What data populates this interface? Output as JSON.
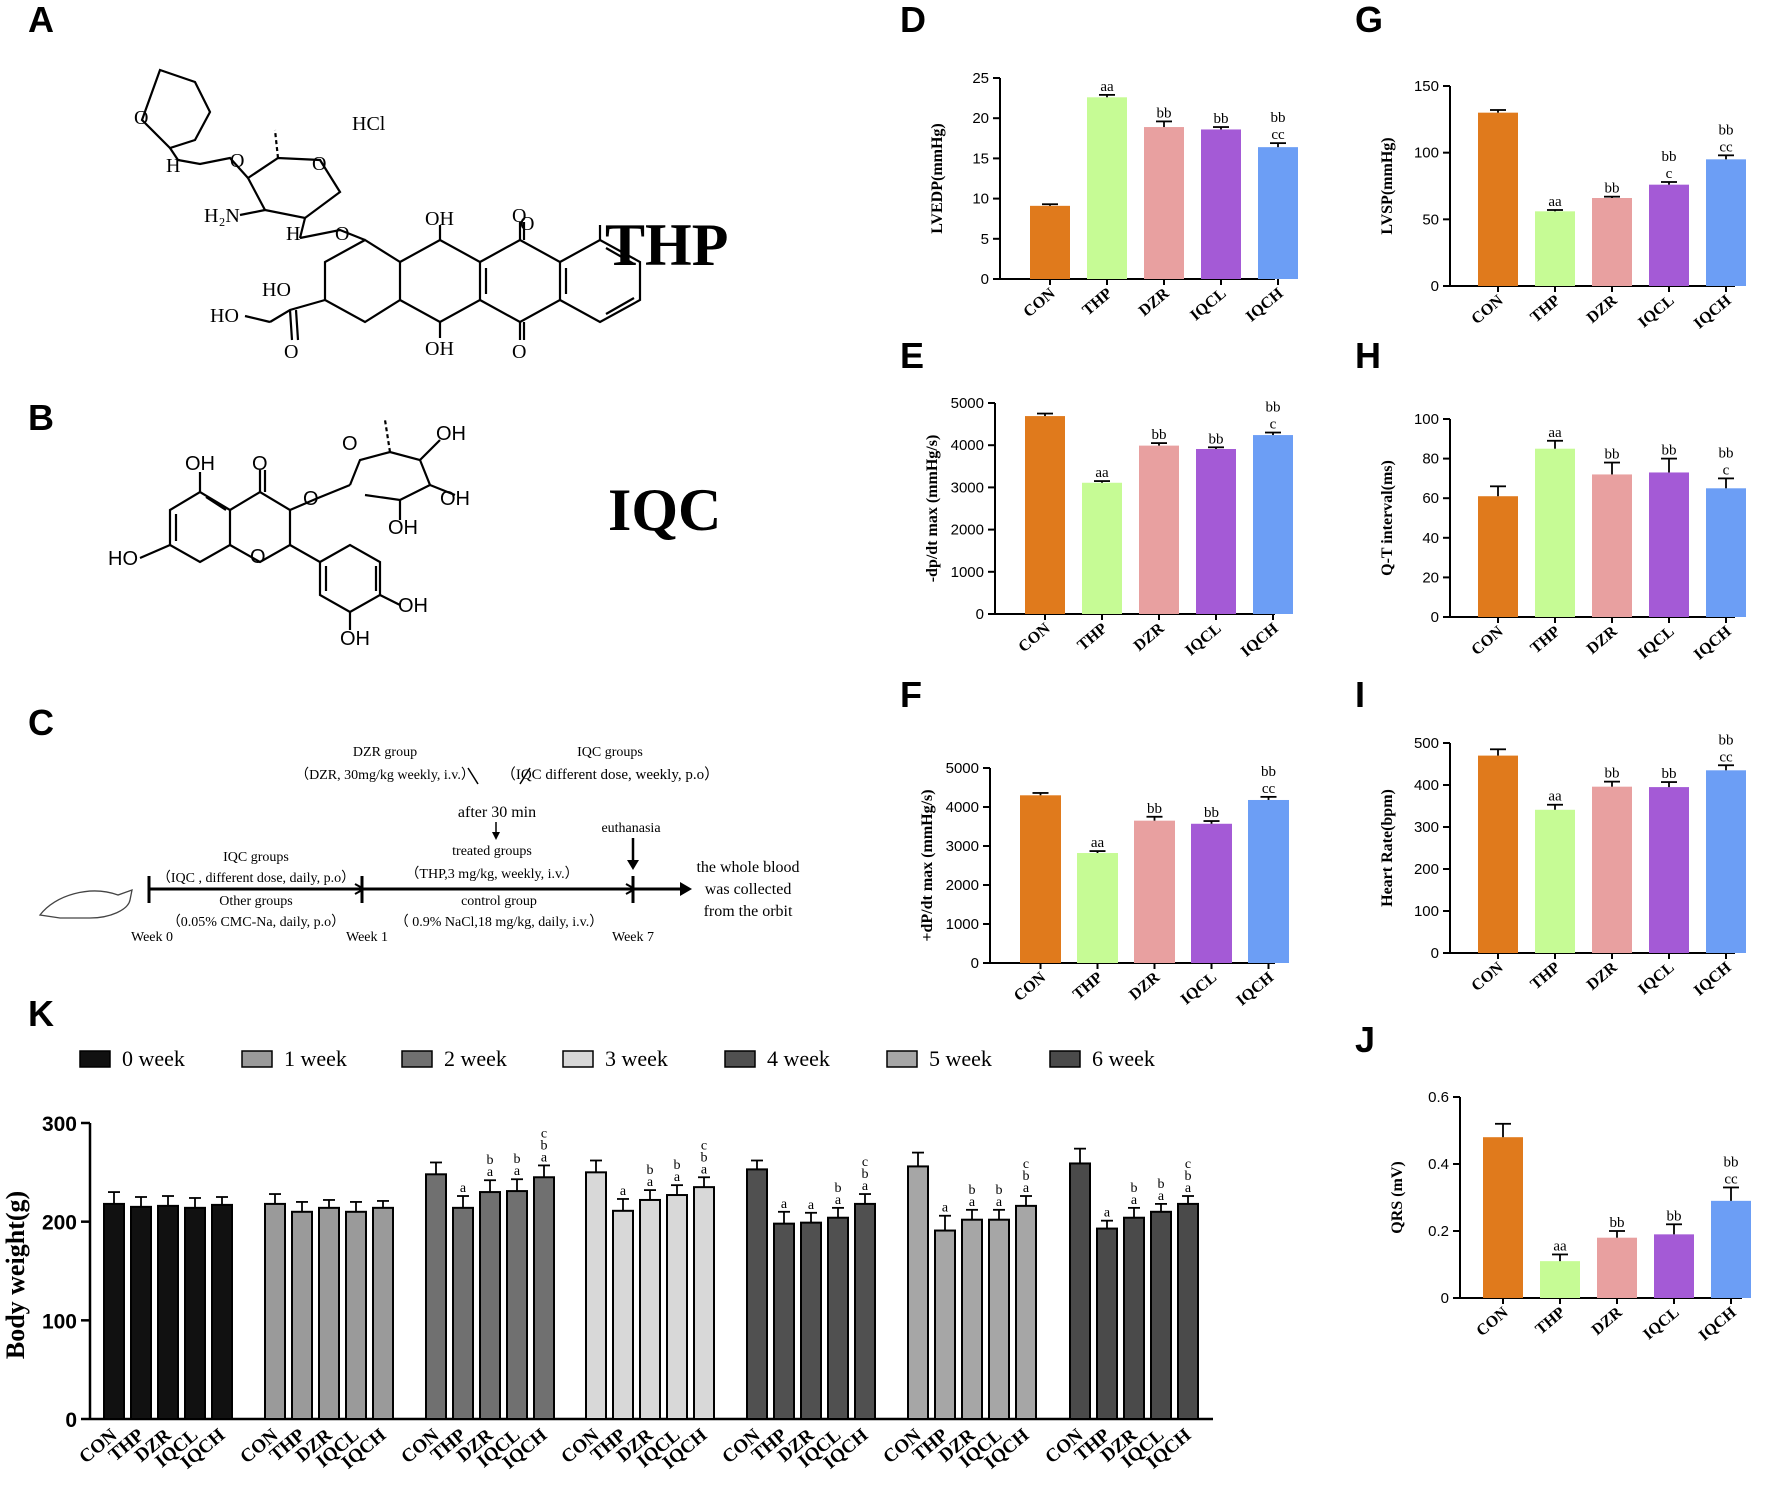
{
  "panel_letters": {
    "A": "A",
    "B": "B",
    "C": "C",
    "D": "D",
    "E": "E",
    "F": "F",
    "G": "G",
    "H": "H",
    "I": "I",
    "J": "J",
    "K": "K"
  },
  "compounds": {
    "thp": {
      "name": "THP",
      "salt": "HCl",
      "atoms": [
        "O",
        "H",
        "O",
        "O",
        "H₂N",
        "H",
        "O",
        "OH",
        "O",
        "O",
        "HO",
        "HO",
        "O",
        "OH",
        "O"
      ]
    },
    "iqc": {
      "name": "IQC",
      "atoms": [
        "OH",
        "O",
        "O",
        "O",
        "OH",
        "OH",
        "HO",
        "O",
        "OH",
        "OH",
        "OH"
      ]
    }
  },
  "scheme": {
    "dzr_title": "DZR group",
    "dzr_detail": "（DZR, 30mg/kg weekly, i.v.）",
    "iqc_title2": "IQC groups",
    "iqc_detail2": "（IQC different dose, weekly, p.o）",
    "after": "after 30 min",
    "treated_title": "treated groups",
    "treated_detail": "（THP,3 mg/kg, weekly, i.v.）",
    "euthanasia": "euthanasia",
    "iqc_title1": "IQC groups",
    "iqc_detail1": "（IQC , different dose, daily, p.o）",
    "other_title": "Other groups",
    "other_detail": "（0.05% CMC-Na, daily, p.o）",
    "control_title": "control group",
    "control_detail": "（ 0.9% NaCl,18 mg/kg, daily, i.v.）",
    "outcome": [
      "the whole blood",
      "was collected",
      "from the orbit"
    ],
    "week0": "Week 0",
    "week1": "Week 1",
    "week7": "Week 7"
  },
  "chart_data": [
    {
      "id": "D",
      "type": "bar",
      "categories": [
        "CON",
        "THP",
        "DZR",
        "IQCL",
        "IQCH"
      ],
      "values": [
        9.1,
        22.6,
        18.9,
        18.6,
        16.4
      ],
      "errors": [
        0.2,
        0.3,
        0.7,
        0.3,
        0.5
      ],
      "annotations": [
        "",
        "aa",
        "bb",
        "bb",
        "bb\ncc"
      ],
      "ylabel": "LVEDP(mmHg)",
      "ylim": [
        0,
        25
      ],
      "yticks": [
        0,
        5,
        10,
        15,
        20,
        25
      ]
    },
    {
      "id": "E",
      "type": "bar",
      "categories": [
        "CON",
        "THP",
        "DZR",
        "IQCL",
        "IQCH"
      ],
      "values": [
        4690,
        3110,
        3990,
        3910,
        4240
      ],
      "errors": [
        60,
        40,
        60,
        40,
        60
      ],
      "annotations": [
        "",
        "aa",
        "bb",
        "bb",
        "bb\nc"
      ],
      "ylabel": "-dp/dt max (mmHg/s)",
      "ylim": [
        0,
        5000
      ],
      "yticks": [
        0,
        1000,
        2000,
        3000,
        4000,
        5000
      ]
    },
    {
      "id": "F",
      "type": "bar",
      "categories": [
        "CON",
        "THP",
        "DZR",
        "IQCL",
        "IQCH"
      ],
      "values": [
        4300,
        2820,
        3650,
        3570,
        4180
      ],
      "errors": [
        60,
        50,
        100,
        70,
        80
      ],
      "annotations": [
        "",
        "aa",
        "bb",
        "bb",
        "bb\ncc"
      ],
      "ylabel": "+dP/dt max (mmHg/s)",
      "ylim": [
        0,
        5000
      ],
      "yticks": [
        0,
        1000,
        2000,
        3000,
        4000,
        5000
      ]
    },
    {
      "id": "G",
      "type": "bar",
      "categories": [
        "CON",
        "THP",
        "DZR",
        "IQCL",
        "IQCH"
      ],
      "values": [
        130,
        56,
        66,
        76,
        95
      ],
      "errors": [
        2,
        1,
        1,
        2,
        3
      ],
      "annotations": [
        "",
        "aa",
        "bb",
        "bb\nc",
        "bb\ncc"
      ],
      "ylabel": "LVSP(mmHg)",
      "ylim": [
        0,
        150
      ],
      "yticks": [
        0,
        50,
        100,
        150
      ]
    },
    {
      "id": "H",
      "type": "bar",
      "categories": [
        "CON",
        "THP",
        "DZR",
        "IQCL",
        "IQCH"
      ],
      "values": [
        61,
        85,
        72,
        73,
        65
      ],
      "errors": [
        5,
        4,
        6,
        7,
        5
      ],
      "annotations": [
        "",
        "aa",
        "bb",
        "bb",
        "bb\nc"
      ],
      "ylabel": "Q-T interval(ms)",
      "ylim": [
        0,
        100
      ],
      "yticks": [
        0,
        20,
        40,
        60,
        80,
        100
      ]
    },
    {
      "id": "I",
      "type": "bar",
      "categories": [
        "CON",
        "THP",
        "DZR",
        "IQCL",
        "IQCH"
      ],
      "values": [
        470,
        341,
        396,
        395,
        435
      ],
      "errors": [
        15,
        12,
        12,
        12,
        12
      ],
      "annotations": [
        "",
        "aa",
        "bb",
        "bb",
        "bb\ncc"
      ],
      "ylabel": "Heart Rate(bpm)",
      "ylim": [
        0,
        500
      ],
      "yticks": [
        0,
        100,
        200,
        300,
        400,
        500
      ]
    },
    {
      "id": "J",
      "type": "bar",
      "categories": [
        "CON",
        "THP",
        "DZR",
        "IQCL",
        "IQCH"
      ],
      "values": [
        0.48,
        0.11,
        0.18,
        0.19,
        0.29
      ],
      "errors": [
        0.04,
        0.02,
        0.02,
        0.03,
        0.04
      ],
      "annotations": [
        "",
        "aa",
        "bb",
        "bb",
        "bb\ncc"
      ],
      "ylabel": "QRS (mV)",
      "ylim": [
        0,
        0.6
      ],
      "yticks": [
        0,
        0.2,
        0.4,
        0.6
      ]
    },
    {
      "id": "K",
      "type": "bar",
      "ylabel": "Body weight(g)",
      "ylim": [
        0,
        300
      ],
      "yticks": [
        0,
        100,
        200,
        300
      ],
      "categories": [
        "CON",
        "THP",
        "DZR",
        "IQCL",
        "IQCH"
      ],
      "legend": [
        "0 week",
        "1 week",
        "2 week",
        "3 week",
        "4 week",
        "5 week",
        "6 week"
      ],
      "series": [
        {
          "name": "0 week",
          "values": [
            218,
            215,
            216,
            214,
            217
          ],
          "errors": [
            12,
            10,
            10,
            10,
            8
          ],
          "annotations": [
            "",
            "",
            "",
            "",
            ""
          ]
        },
        {
          "name": "1 week",
          "values": [
            218,
            210,
            214,
            210,
            214
          ],
          "errors": [
            10,
            10,
            8,
            10,
            7
          ],
          "annotations": [
            "",
            "",
            "",
            "",
            ""
          ]
        },
        {
          "name": "2 week",
          "values": [
            248,
            214,
            230,
            231,
            245
          ],
          "errors": [
            12,
            12,
            12,
            12,
            12
          ],
          "annotations": [
            "",
            "a",
            "a\nb",
            "a\nb",
            "a\nb\nc"
          ]
        },
        {
          "name": "3 week",
          "values": [
            250,
            211,
            222,
            227,
            235
          ],
          "errors": [
            12,
            12,
            10,
            10,
            10
          ],
          "annotations": [
            "",
            "a",
            "a\nb",
            "a\nb",
            "a\nb\nc"
          ]
        },
        {
          "name": "4 week",
          "values": [
            253,
            198,
            199,
            204,
            218
          ],
          "errors": [
            9,
            12,
            10,
            10,
            10
          ],
          "annotations": [
            "",
            "a",
            "a",
            "a\nb",
            "a\nb\nc"
          ]
        },
        {
          "name": "5 week",
          "values": [
            256,
            191,
            202,
            202,
            216
          ],
          "errors": [
            14,
            15,
            10,
            10,
            10
          ],
          "annotations": [
            "",
            "a",
            "a\nb",
            "a\nb",
            "a\nb\nc"
          ]
        },
        {
          "name": "6 week",
          "values": [
            259,
            193,
            204,
            210,
            218
          ],
          "errors": [
            15,
            8,
            10,
            8,
            8
          ],
          "annotations": [
            "",
            "a",
            "a\nb",
            "a\nb",
            "a\nb\nc"
          ]
        }
      ]
    }
  ],
  "colors": {
    "CON": "#e07a1c",
    "THP": "#c6fb95",
    "DZR": "#e8a0a0",
    "IQCL": "#a45ad6",
    "IQCH": "#6c9ef5"
  },
  "k_colors": [
    "#111111",
    "#9a9a9a",
    "#707070",
    "#d8d8d8",
    "#505050",
    "#a6a6a6",
    "#4a4a4a"
  ]
}
